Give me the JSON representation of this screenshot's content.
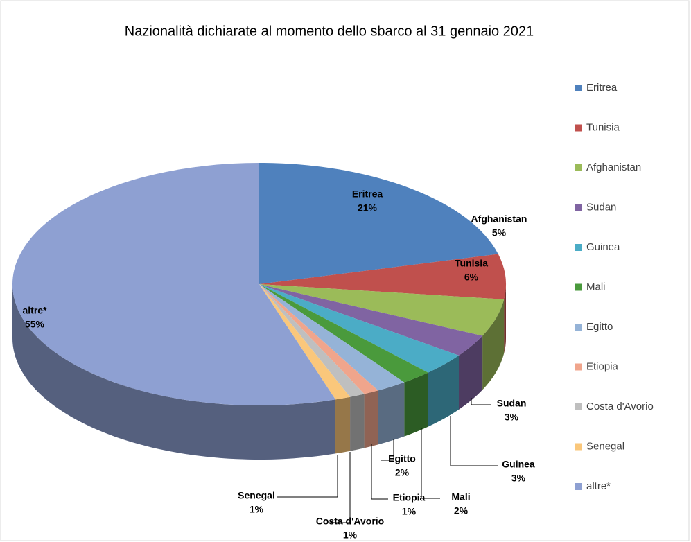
{
  "chart_data": {
    "type": "pie3d",
    "title": "Nazionalità dichiarate al momento dello sbarco al 31 gennaio 2021",
    "categories": [
      "Eritrea",
      "Tunisia",
      "Afghanistan",
      "Sudan",
      "Guinea",
      "Mali",
      "Egitto",
      "Etiopia",
      "Costa d'Avorio",
      "Senegal",
      "altre*"
    ],
    "values": [
      21,
      6,
      5,
      3,
      3,
      2,
      2,
      1,
      1,
      1,
      55
    ],
    "value_labels": [
      "21%",
      "6%",
      "5%",
      "3%",
      "3%",
      "2%",
      "2%",
      "1%",
      "1%",
      "1%",
      "55%"
    ],
    "colors": [
      "#4f81bd",
      "#c0504d",
      "#9bbb59",
      "#8064a2",
      "#4bacc6",
      "#4a9a3c",
      "#95b3d7",
      "#f0a58c",
      "#bfbfbf",
      "#fac77b",
      "#8ea0d2"
    ],
    "legend": "right"
  }
}
